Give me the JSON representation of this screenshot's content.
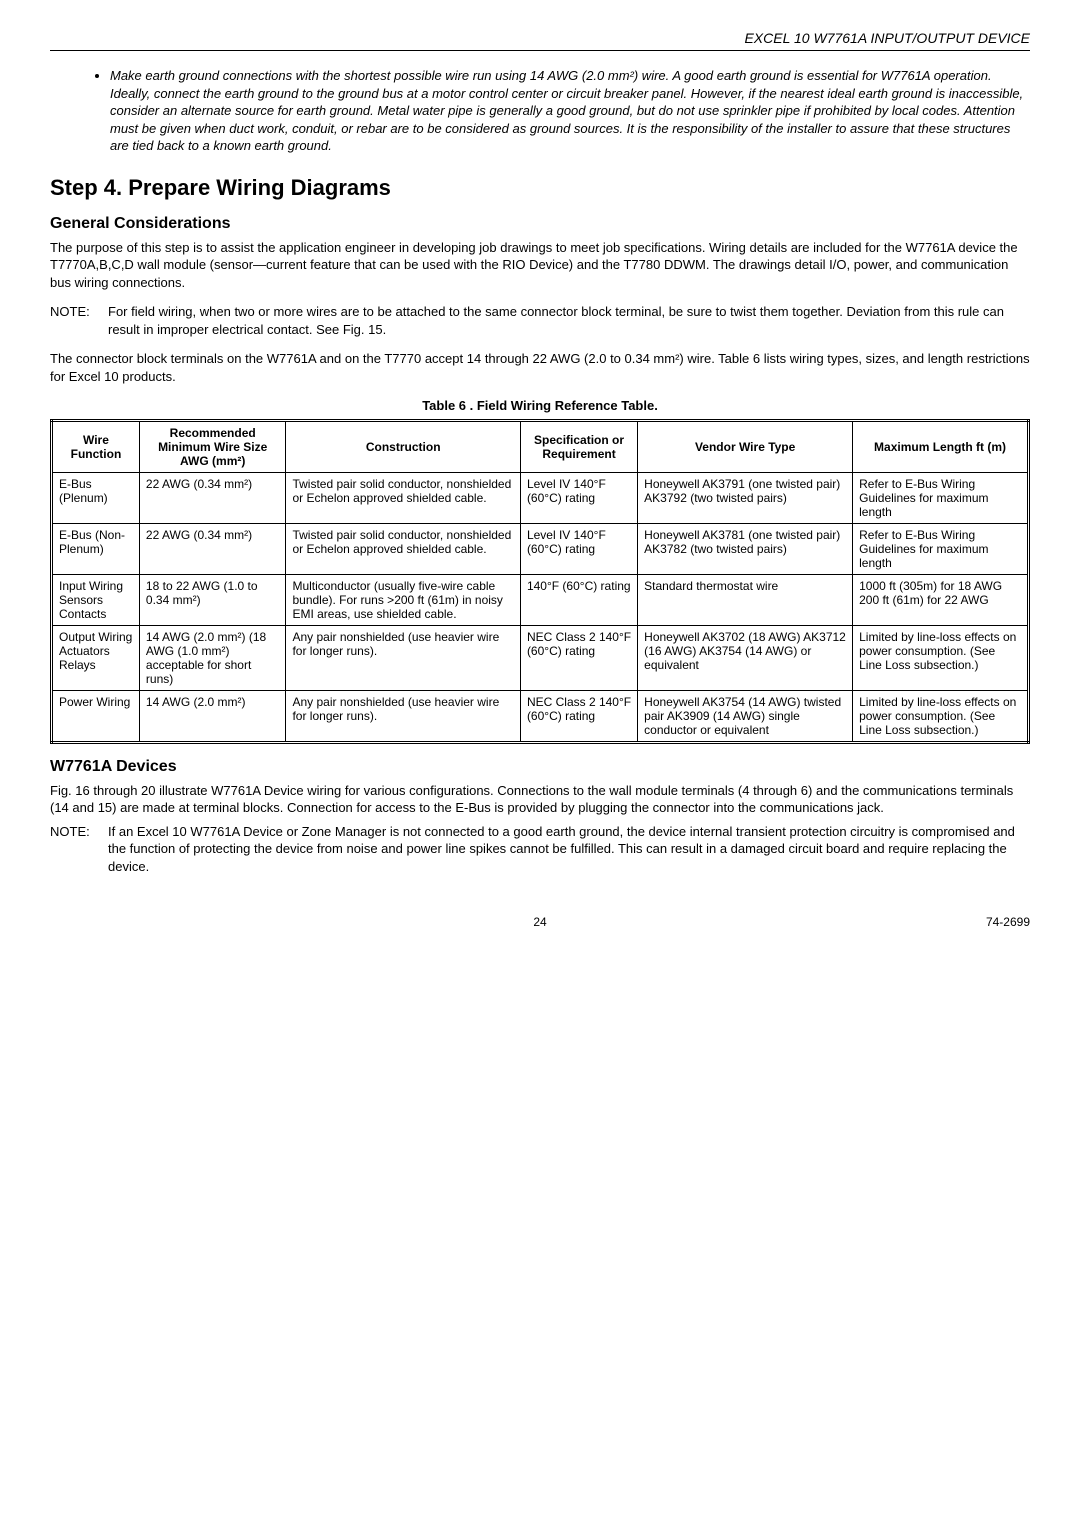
{
  "header": {
    "doc_title": "EXCEL 10 W7761A INPUT/OUTPUT DEVICE"
  },
  "bullet": {
    "text": "Make earth ground connections with the shortest possible wire run using 14 AWG (2.0 mm²) wire. A good earth ground is essential for W7761A operation. Ideally, connect the earth ground to the ground bus at a motor control center or circuit breaker panel. However, if the nearest ideal earth ground is inaccessible, consider an alternate source for earth ground. Metal water pipe is generally a good ground, but do not use sprinkler pipe if prohibited by local codes. Attention must be given when duct work, conduit, or rebar are to be considered as ground sources. It is the responsibility of the installer to assure that these structures are tied back to a known earth ground."
  },
  "step4": {
    "title": "Step 4. Prepare Wiring Diagrams",
    "general_heading": "General Considerations",
    "para1": "The purpose of this step is to assist the application engineer in developing job drawings to meet job specifications. Wiring details are included for the W7761A device the T7770A,B,C,D wall module (sensor—current feature that can be used with the RIO Device) and the T7780 DDWM. The drawings detail I/O, power, and communication bus wiring connections.",
    "note1_label": "NOTE:",
    "note1_text": "For field wiring, when two or more wires are to be attached to the same connector block terminal, be sure to twist them together. Deviation from this rule can result in improper electrical contact. See Fig. 15.",
    "para2": "The connector block terminals on the W7761A and on the T7770 accept 14 through 22 AWG (2.0 to 0.34 mm²) wire. Table 6 lists wiring types, sizes, and length restrictions for Excel 10 products."
  },
  "table": {
    "caption": "Table 6 . Field Wiring Reference Table.",
    "headers": {
      "c1": "Wire Function",
      "c2": "Recommended Minimum Wire Size AWG (mm²)",
      "c3": "Construction",
      "c4": "Specification or Requirement",
      "c5": "Vendor Wire Type",
      "c6": "Maximum Length ft (m)"
    },
    "rows": [
      {
        "c1": "E-Bus (Plenum)",
        "c2": "22 AWG (0.34 mm²)",
        "c3": "Twisted pair solid conductor, nonshielded or Echelon approved shielded cable.",
        "c4": "Level IV 140°F (60°C) rating",
        "c5": "Honeywell AK3791 (one twisted pair) AK3792 (two twisted pairs)",
        "c6": "Refer to E-Bus Wiring Guidelines for maximum length"
      },
      {
        "c1": "E-Bus (Non-Plenum)",
        "c2": "22 AWG (0.34 mm²)",
        "c3": "Twisted pair solid conductor, nonshielded or Echelon approved shielded cable.",
        "c4": "Level IV 140°F (60°C) rating",
        "c5": "Honeywell AK3781 (one twisted pair) AK3782 (two twisted pairs)",
        "c6": "Refer to E-Bus Wiring Guidelines for maximum length"
      },
      {
        "c1": "Input Wiring Sensors Contacts",
        "c2": "18 to 22 AWG (1.0 to 0.34 mm²)",
        "c3": "Multiconductor (usually five-wire cable bundle). For runs >200 ft (61m) in noisy EMI areas, use shielded cable.",
        "c4": "140°F (60°C) rating",
        "c5": "Standard thermostat wire",
        "c6": "1000 ft (305m) for 18 AWG 200 ft (61m) for 22 AWG"
      },
      {
        "c1": "Output Wiring Actuators Relays",
        "c2": "14 AWG (2.0 mm²) (18 AWG (1.0 mm²) acceptable for short runs)",
        "c3": "Any pair nonshielded (use heavier wire for longer runs).",
        "c4": "NEC Class 2 140°F (60°C) rating",
        "c5": "Honeywell AK3702 (18 AWG) AK3712 (16 AWG) AK3754 (14 AWG) or equivalent",
        "c6": "Limited by line-loss effects on power consumption. (See Line Loss subsection.)"
      },
      {
        "c1": "Power Wiring",
        "c2": "14 AWG (2.0 mm²)",
        "c3": "Any pair nonshielded (use heavier wire for longer runs).",
        "c4": "NEC Class 2 140°F (60°C) rating",
        "c5": "Honeywell AK3754 (14 AWG) twisted pair AK3909 (14 AWG) single conductor or equivalent",
        "c6": "Limited by line-loss effects on power consumption. (See Line Loss subsection.)"
      }
    ]
  },
  "devices": {
    "heading": "W7761A Devices",
    "para": "Fig. 16 through 20 illustrate W7761A Device wiring for various configurations. Connections to the wall module terminals (4 through 6) and the communications terminals (14 and 15) are made at terminal blocks. Connection for access to the E-Bus is provided by plugging the connector into the communications jack.",
    "note_label": "NOTE:",
    "note_text": "If an Excel 10 W7761A Device or Zone Manager is not connected to a good earth ground, the device internal transient protection circuitry is compromised and the function of protecting the device from noise and power line spikes cannot be fulfilled. This can result in a damaged circuit board and require replacing the device."
  },
  "footer": {
    "page": "24",
    "docnum": "74-2699"
  }
}
